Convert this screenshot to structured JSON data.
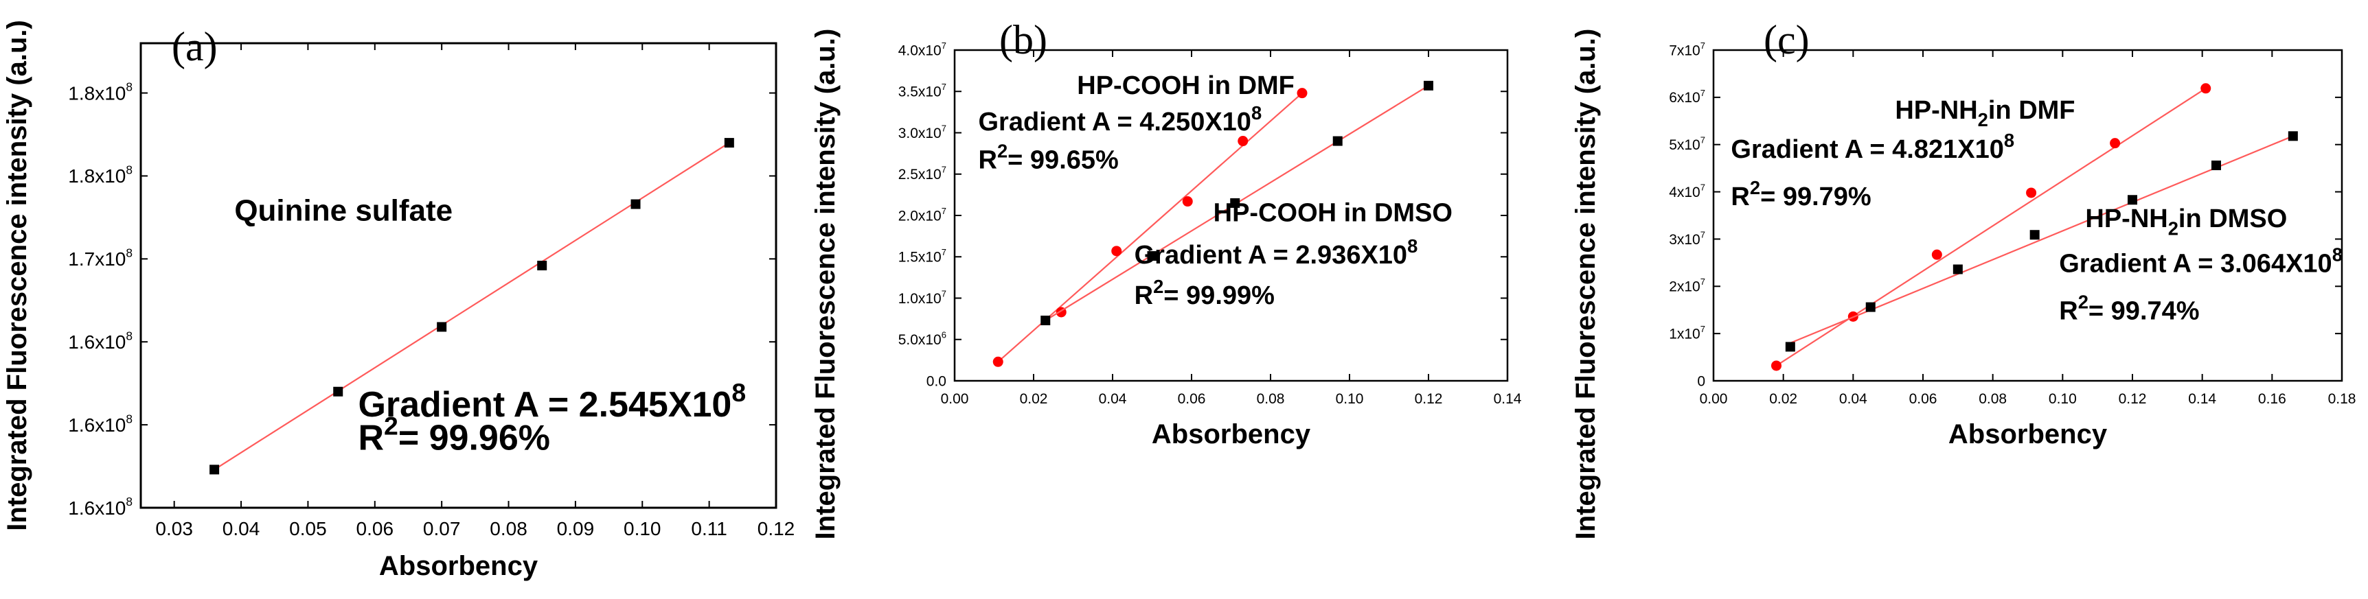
{
  "charts": [
    {
      "type": "scatter",
      "panel_label": "(a)",
      "xlabel": "Absorbency",
      "ylabel": "Integrated Fluorescence intensity (a.u.)",
      "xlim": [
        0.025,
        0.12
      ],
      "ylim": [
        156,
        184
      ],
      "xticks": [
        {
          "v": 0.03,
          "label": "0.03"
        },
        {
          "v": 0.04,
          "label": "0.04"
        },
        {
          "v": 0.05,
          "label": "0.05"
        },
        {
          "v": 0.06,
          "label": "0.06"
        },
        {
          "v": 0.07,
          "label": "0.07"
        },
        {
          "v": 0.08,
          "label": "0.08"
        },
        {
          "v": 0.09,
          "label": "0.09"
        },
        {
          "v": 0.1,
          "label": "0.10"
        },
        {
          "v": 0.11,
          "label": "0.11"
        },
        {
          "v": 0.12,
          "label": "0.12"
        }
      ],
      "yticks": [
        {
          "v": 156,
          "mant": "1.6x10",
          "exp": "8"
        },
        {
          "v": 161,
          "mant": "1.6x10",
          "exp": "8"
        },
        {
          "v": 166,
          "mant": "1.6x10",
          "exp": "8"
        },
        {
          "v": 171,
          "mant": "1.7x10",
          "exp": "8"
        },
        {
          "v": 176,
          "mant": "1.8x10",
          "exp": "8"
        },
        {
          "v": 181,
          "mant": "1.8x10",
          "exp": "8"
        }
      ],
      "series": [
        {
          "name": "Quinine sulfate",
          "marker": "square",
          "points": [
            [
              0.036,
              158.3
            ],
            [
              0.0545,
              163.0
            ],
            [
              0.07,
              166.9
            ],
            [
              0.085,
              170.6
            ],
            [
              0.099,
              174.3
            ],
            [
              0.113,
              178.0
            ]
          ],
          "fit": [
            [
              0.036,
              158.3
            ],
            [
              0.113,
              178.0
            ]
          ]
        }
      ],
      "annotations": [
        {
          "id": "a_title",
          "text": "Quinine sulfate",
          "at": [
            0.039,
            173.3
          ],
          "size": 44
        },
        {
          "id": "a_grad",
          "text": "Gradient A = 2.545X10",
          "sup": "8",
          "at": [
            0.0575,
            161.5
          ],
          "size": 52
        },
        {
          "id": "a_r2",
          "pre": "R",
          "sup": "2",
          "text": "= 99.96%",
          "at": [
            0.0575,
            159.5
          ],
          "size": 52
        }
      ]
    },
    {
      "type": "scatter",
      "panel_label": "(b)",
      "xlabel": "Absorbency",
      "ylabel": "Integrated Fluorescence intensity (a.u.)",
      "xlim": [
        0.0,
        0.14
      ],
      "ylim": [
        0.0,
        4.0
      ],
      "xticks": [
        {
          "v": 0.0,
          "label": "0.00"
        },
        {
          "v": 0.02,
          "label": "0.02"
        },
        {
          "v": 0.04,
          "label": "0.04"
        },
        {
          "v": 0.06,
          "label": "0.06"
        },
        {
          "v": 0.08,
          "label": "0.08"
        },
        {
          "v": 0.1,
          "label": "0.10"
        },
        {
          "v": 0.12,
          "label": "0.12"
        },
        {
          "v": 0.14,
          "label": "0.14"
        }
      ],
      "yticks": [
        {
          "v": 0.0,
          "mant": "0.0",
          "exp": ""
        },
        {
          "v": 0.5,
          "mant": "5.0x10",
          "exp": "6"
        },
        {
          "v": 1.0,
          "mant": "1.0x10",
          "exp": "7"
        },
        {
          "v": 1.5,
          "mant": "1.5x10",
          "exp": "7"
        },
        {
          "v": 2.0,
          "mant": "2.0x10",
          "exp": "7"
        },
        {
          "v": 2.5,
          "mant": "2.5x10",
          "exp": "7"
        },
        {
          "v": 3.0,
          "mant": "3.0x10",
          "exp": "7"
        },
        {
          "v": 3.5,
          "mant": "3.5x10",
          "exp": "7"
        },
        {
          "v": 4.0,
          "mant": "4.0x10",
          "exp": "7"
        }
      ],
      "series": [
        {
          "name": "HP-COOH in DMF",
          "marker": "circle",
          "points": [
            [
              0.011,
              0.23
            ],
            [
              0.027,
              0.83
            ],
            [
              0.041,
              1.57
            ],
            [
              0.059,
              2.17
            ],
            [
              0.073,
              2.9
            ],
            [
              0.088,
              3.48
            ]
          ],
          "fit": [
            [
              0.011,
              0.23
            ],
            [
              0.088,
              3.48
            ]
          ]
        },
        {
          "name": "HP-COOH in DMSO",
          "marker": "square",
          "points": [
            [
              0.023,
              0.73
            ],
            [
              0.05,
              1.51
            ],
            [
              0.071,
              2.15
            ],
            [
              0.097,
              2.9
            ],
            [
              0.12,
              3.57
            ]
          ],
          "fit": [
            [
              0.023,
              0.73
            ],
            [
              0.12,
              3.57
            ]
          ]
        }
      ],
      "annotations": [
        {
          "id": "b_dmf",
          "text": "HP-COOH in DMF",
          "at": [
            0.031,
            3.47
          ],
          "size": 38
        },
        {
          "id": "b_grad1",
          "text": "Gradient A = 4.250X10",
          "sup": "8",
          "at": [
            0.006,
            3.03
          ],
          "size": 38
        },
        {
          "id": "b_r21",
          "pre": "R",
          "sup": "2",
          "text": "= 99.65%",
          "at": [
            0.006,
            2.57
          ],
          "size": 38
        },
        {
          "id": "b_dmso",
          "text": "HP-COOH in DMSO",
          "at": [
            0.0655,
            1.93
          ],
          "size": 38
        },
        {
          "id": "b_grad2",
          "text": "Gradient A = 2.936X10",
          "sup": "8",
          "at": [
            0.0455,
            1.42
          ],
          "size": 38
        },
        {
          "id": "b_r22",
          "pre": "R",
          "sup": "2",
          "text": "= 99.99%",
          "at": [
            0.0455,
            0.93
          ],
          "size": 38
        }
      ]
    },
    {
      "type": "scatter",
      "panel_label": "(c)",
      "xlabel": "Absorbency",
      "ylabel": "Integrated Fluorescence intensity (a.u.)",
      "xlim": [
        0.0,
        0.18
      ],
      "ylim": [
        0.0,
        7.0
      ],
      "xticks": [
        {
          "v": 0.0,
          "label": "0.00"
        },
        {
          "v": 0.02,
          "label": "0.02"
        },
        {
          "v": 0.04,
          "label": "0.04"
        },
        {
          "v": 0.06,
          "label": "0.06"
        },
        {
          "v": 0.08,
          "label": "0.08"
        },
        {
          "v": 0.1,
          "label": "0.10"
        },
        {
          "v": 0.12,
          "label": "0.12"
        },
        {
          "v": 0.14,
          "label": "0.14"
        },
        {
          "v": 0.16,
          "label": "0.16"
        },
        {
          "v": 0.18,
          "label": "0.18"
        }
      ],
      "yticks": [
        {
          "v": 0,
          "mant": "0",
          "exp": ""
        },
        {
          "v": 1,
          "mant": "1x10",
          "exp": "7"
        },
        {
          "v": 2,
          "mant": "2x10",
          "exp": "7"
        },
        {
          "v": 3,
          "mant": "3x10",
          "exp": "7"
        },
        {
          "v": 4,
          "mant": "4x10",
          "exp": "7"
        },
        {
          "v": 5,
          "mant": "5x10",
          "exp": "7"
        },
        {
          "v": 6,
          "mant": "6x10",
          "exp": "7"
        },
        {
          "v": 7,
          "mant": "7x10",
          "exp": "7"
        }
      ],
      "series": [
        {
          "name": "HP-NH2 in DMF",
          "marker": "circle",
          "points": [
            [
              0.018,
              0.32
            ],
            [
              0.04,
              1.36
            ],
            [
              0.064,
              2.67
            ],
            [
              0.091,
              3.98
            ],
            [
              0.115,
              5.03
            ],
            [
              0.141,
              6.19
            ]
          ],
          "fit": [
            [
              0.018,
              0.32
            ],
            [
              0.141,
              6.19
            ]
          ]
        },
        {
          "name": "HP-NH2 in DMSO",
          "marker": "square",
          "points": [
            [
              0.022,
              0.72
            ],
            [
              0.045,
              1.56
            ],
            [
              0.07,
              2.36
            ],
            [
              0.092,
              3.09
            ],
            [
              0.12,
              3.83
            ],
            [
              0.144,
              4.56
            ],
            [
              0.166,
              5.18
            ]
          ],
          "fit": [
            [
              0.022,
              0.8
            ],
            [
              0.166,
              5.18
            ]
          ]
        }
      ],
      "annotations": [
        {
          "id": "c_dmf",
          "pre": "HP-NH",
          "sub": "2",
          "text": "in DMF",
          "at": [
            0.052,
            5.55
          ],
          "size": 38
        },
        {
          "id": "c_grad1",
          "text": "Gradient A = 4.821X10",
          "sup": "8",
          "at": [
            0.005,
            4.72
          ],
          "size": 38
        },
        {
          "id": "c_r21",
          "pre": "R",
          "sup": "2",
          "text": "= 99.79%",
          "at": [
            0.005,
            3.72
          ],
          "size": 38
        },
        {
          "id": "c_dmso",
          "pre": "HP-NH",
          "sub": "2",
          "text": "in DMSO",
          "at": [
            0.1065,
            3.25
          ],
          "size": 38
        },
        {
          "id": "c_grad2",
          "text": "Gradient A = 3.064X10",
          "sup": "8",
          "at": [
            0.099,
            2.3
          ],
          "size": 38
        },
        {
          "id": "c_r22",
          "pre": "R",
          "sup": "2",
          "text": "= 99.74%",
          "at": [
            0.099,
            1.3
          ],
          "size": 38
        }
      ]
    }
  ],
  "chart_data": [
    {
      "type": "scatter",
      "title": "(a)",
      "xlabel": "Absorbency",
      "ylabel": "Integrated Fluorescence intensity (a.u.)",
      "series": [
        {
          "name": "Quinine sulfate",
          "x": [
            0.036,
            0.0545,
            0.07,
            0.085,
            0.099,
            0.113
          ],
          "y_note": "values in arbitrary units (x10^8 scale, tick labels 1.6–1.8x10^8)"
        }
      ],
      "annotations": [
        "Quinine sulfate",
        "Gradient A = 2.545X10^8",
        "R^2= 99.96%"
      ]
    },
    {
      "type": "scatter",
      "title": "(b)",
      "xlabel": "Absorbency",
      "ylabel": "Integrated Fluorescence intensity (a.u.)",
      "xlim": [
        0.0,
        0.14
      ],
      "ylim": [
        0.0,
        40000000.0
      ],
      "series": [
        {
          "name": "HP-COOH in DMF",
          "x": [
            0.011,
            0.027,
            0.041,
            0.059,
            0.073,
            0.088
          ],
          "y": [
            2300000.0,
            8300000.0,
            15700000.0,
            21700000.0,
            29000000.0,
            34800000.0
          ]
        },
        {
          "name": "HP-COOH in DMSO",
          "x": [
            0.023,
            0.05,
            0.071,
            0.097,
            0.12
          ],
          "y": [
            7300000.0,
            15100000.0,
            21500000.0,
            29000000.0,
            35700000.0
          ]
        }
      ],
      "annotations": [
        "Gradient A = 4.250X10^8",
        "R^2= 99.65%",
        "Gradient A = 2.936X10^8",
        "R^2= 99.99%"
      ]
    },
    {
      "type": "scatter",
      "title": "(c)",
      "xlabel": "Absorbency",
      "ylabel": "Integrated Fluorescence intensity (a.u.)",
      "xlim": [
        0.0,
        0.18
      ],
      "ylim": [
        0.0,
        70000000.0
      ],
      "series": [
        {
          "name": "HP-NH2 in DMF",
          "x": [
            0.018,
            0.04,
            0.064,
            0.091,
            0.115,
            0.141
          ],
          "y": [
            3200000.0,
            13600000.0,
            26700000.0,
            39800000.0,
            50300000.0,
            61900000.0
          ]
        },
        {
          "name": "HP-NH2 in DMSO",
          "x": [
            0.022,
            0.045,
            0.07,
            0.092,
            0.12,
            0.144,
            0.166
          ],
          "y": [
            7200000.0,
            15600000.0,
            23600000.0,
            30900000.0,
            38300000.0,
            45600000.0,
            51800000.0
          ]
        }
      ],
      "annotations": [
        "Gradient A = 4.821X10^8",
        "R^2= 99.79%",
        "Gradient A = 3.064X10^8",
        "R^2= 99.74%"
      ]
    }
  ]
}
